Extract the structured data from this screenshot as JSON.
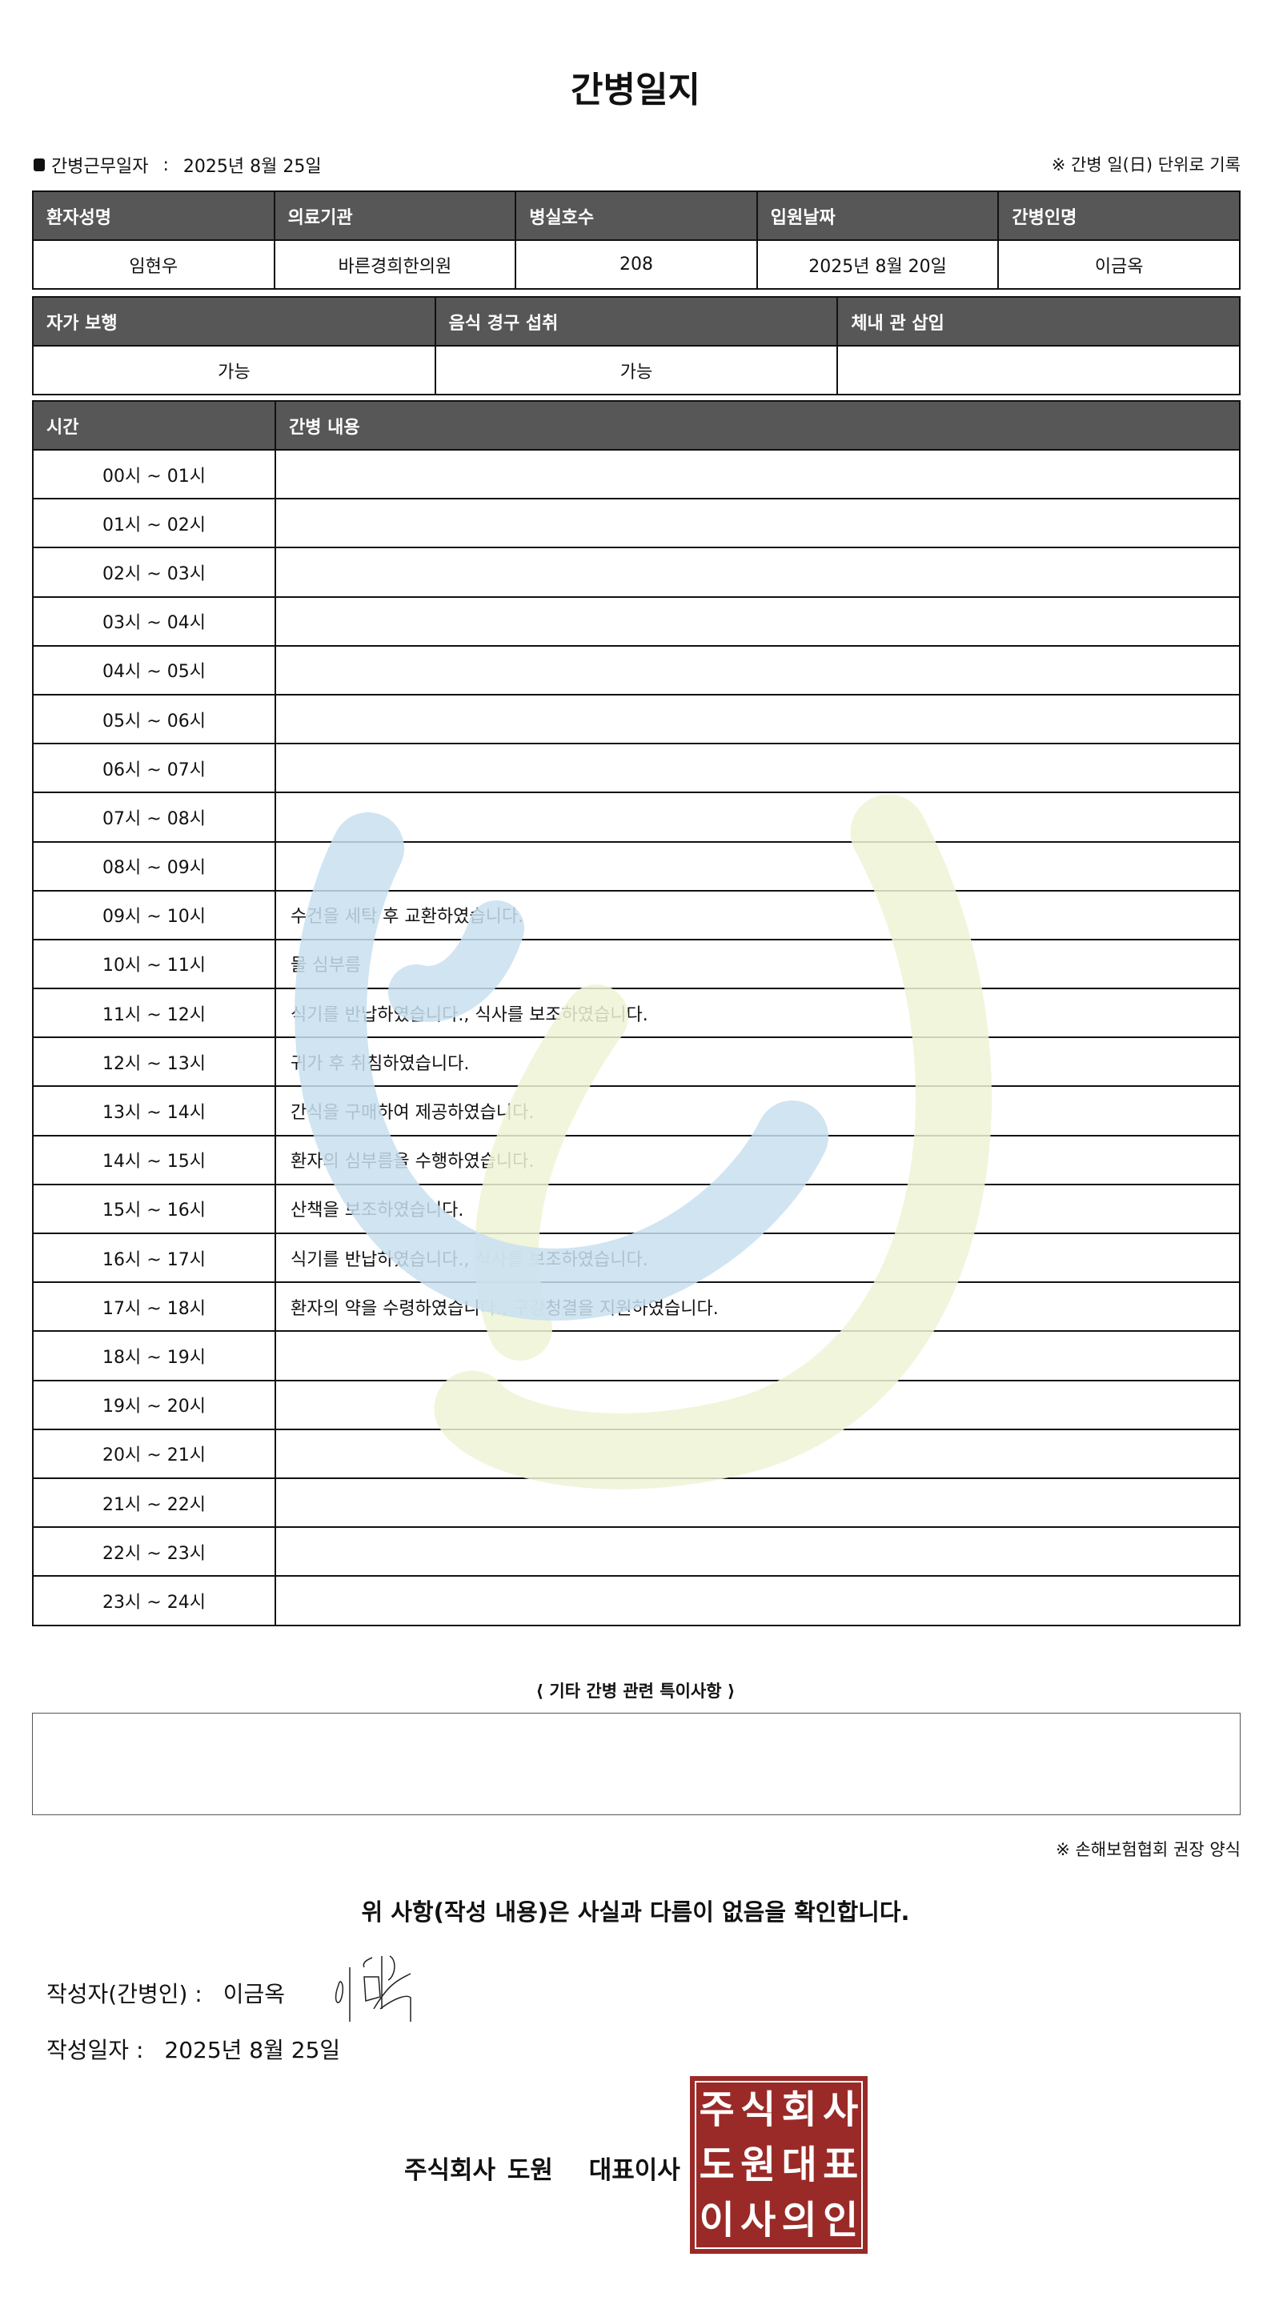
{
  "title": "간병일지",
  "work_date_label": "간병근무일자",
  "work_date_sep": ":",
  "work_date": "2025년 8월 25일",
  "unit_note": "※ 간병 일(日) 단위로 기록",
  "info": {
    "headers": [
      "환자성명",
      "의료기관",
      "병실호수",
      "입원날짜",
      "간병인명"
    ],
    "values": [
      "임현우",
      "바른경희한의원",
      "208",
      "2025년 8월 20일",
      "이금옥"
    ]
  },
  "ability": {
    "headers": [
      "자가 보행",
      "음식 경구 섭취",
      "체내 관 삽입"
    ],
    "values": [
      "가능",
      "가능",
      ""
    ]
  },
  "log": {
    "headers": [
      "시간",
      "간병 내용"
    ],
    "rows": [
      {
        "time": "00시 ~ 01시",
        "content": ""
      },
      {
        "time": "01시 ~ 02시",
        "content": ""
      },
      {
        "time": "02시 ~ 03시",
        "content": ""
      },
      {
        "time": "03시 ~ 04시",
        "content": ""
      },
      {
        "time": "04시 ~ 05시",
        "content": ""
      },
      {
        "time": "05시 ~ 06시",
        "content": ""
      },
      {
        "time": "06시 ~ 07시",
        "content": ""
      },
      {
        "time": "07시 ~ 08시",
        "content": ""
      },
      {
        "time": "08시 ~ 09시",
        "content": ""
      },
      {
        "time": "09시 ~ 10시",
        "content": "수건을 세탁 후 교환하였습니다."
      },
      {
        "time": "10시 ~ 11시",
        "content": "물 심부름"
      },
      {
        "time": "11시 ~ 12시",
        "content": "식기를 반납하였습니다., 식사를 보조하였습니다."
      },
      {
        "time": "12시 ~ 13시",
        "content": "귀가 후 취침하였습니다."
      },
      {
        "time": "13시 ~ 14시",
        "content": "간식을 구매하여 제공하였습니다."
      },
      {
        "time": "14시 ~ 15시",
        "content": "환자의 심부름을 수행하였습니다."
      },
      {
        "time": "15시 ~ 16시",
        "content": "산책을 보조하였습니다."
      },
      {
        "time": "16시 ~ 17시",
        "content": "식기를 반납하였습니다., 식사를 보조하였습니다."
      },
      {
        "time": "17시 ~ 18시",
        "content": "환자의 약을 수령하였습니다., 구강청결을 지원하였습니다."
      },
      {
        "time": "18시 ~ 19시",
        "content": ""
      },
      {
        "time": "19시 ~ 20시",
        "content": ""
      },
      {
        "time": "20시 ~ 21시",
        "content": ""
      },
      {
        "time": "21시 ~ 22시",
        "content": ""
      },
      {
        "time": "22시 ~ 23시",
        "content": ""
      },
      {
        "time": "23시 ~ 24시",
        "content": ""
      }
    ]
  },
  "etc_label": "⟨ 기타 간병 관련 특이사항 ⟩",
  "etc_value": "",
  "insurance_note": "※ 손해보험협회 권장 양식",
  "confirm_text": "위 사항(작성 내용)은 사실과 다름이 없음을 확인합니다.",
  "writer_label": "작성자(간병인) :",
  "writer_name": "이금옥",
  "signature": "이금옥",
  "write_date_label": "작성일자 :",
  "write_date": "2025년 8월 25일",
  "company": "주식회사 도원",
  "company_role": "대표이사",
  "stamp_text": [
    "주",
    "식",
    "회",
    "사",
    "도",
    "원",
    "대",
    "표",
    "이",
    "사",
    "의",
    "인"
  ],
  "colors": {
    "header_bg": "#575757",
    "stamp": "#9a2a27",
    "watermark_blue": "#c8dff0",
    "watermark_green": "#eef3d6"
  }
}
